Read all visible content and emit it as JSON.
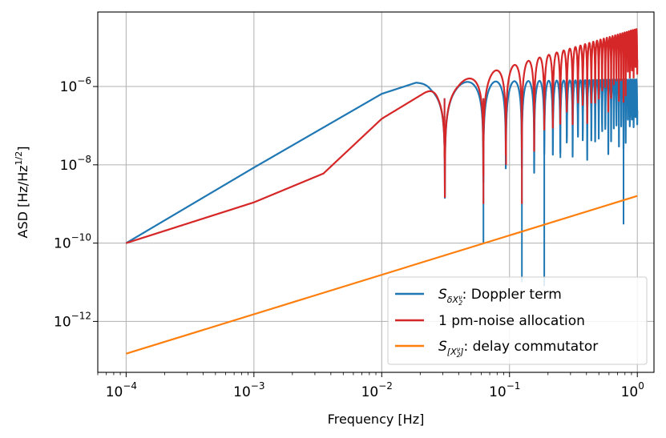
{
  "chart_data": {
    "type": "line",
    "xscale": "log",
    "yscale": "log",
    "xlabel": "Frequency [Hz]",
    "ylabel": "ASD [Hz/Hz",
    "ylabel_sup": "1/2",
    "ylabel_end": "]",
    "xlim": [
      6e-05,
      1.35
    ],
    "ylim": [
      5e-14,
      8e-05
    ],
    "grid": true,
    "legend_position": "lower-right",
    "xticks": [
      {
        "value": 0.0001,
        "base": "10",
        "exp": "−4"
      },
      {
        "value": 0.001,
        "base": "10",
        "exp": "−3"
      },
      {
        "value": 0.01,
        "base": "10",
        "exp": "−2"
      },
      {
        "value": 0.1,
        "base": "10",
        "exp": "−1"
      },
      {
        "value": 1,
        "base": "10",
        "exp": "0"
      }
    ],
    "yticks": [
      {
        "value": 1e-12,
        "base": "10",
        "exp": "−12"
      },
      {
        "value": 1e-10,
        "base": "10",
        "exp": "−10"
      },
      {
        "value": 1e-08,
        "base": "10",
        "exp": "−8"
      },
      {
        "value": 1e-06,
        "base": "10",
        "exp": "−6"
      }
    ],
    "series": [
      {
        "name": "Doppler term",
        "legend_symbol": "S",
        "legend_sub": "δX",
        "legend_subsub": "2",
        "legend_subsup": "ν",
        "legend_suffix": ": Doppler term",
        "color": "#1f77b4",
        "low_freq_points": [
          [
            0.0001,
            1e-10
          ],
          [
            0.001,
            8.5e-09
          ],
          [
            0.01,
            6.5e-07
          ],
          [
            0.0185,
            1.25e-06
          ]
        ],
        "envelope_peak": 1.25e-06,
        "notch_points": [
          [
            0.031,
            1.5e-08
          ],
          [
            0.0625,
            1e-10
          ],
          [
            0.0935,
            1e-08
          ],
          [
            0.125,
            1e-11
          ],
          [
            0.187,
            8e-12
          ],
          [
            0.25,
            1.5e-08
          ],
          [
            0.78,
            3e-10
          ]
        ]
      },
      {
        "name": "1 pm-noise allocation",
        "legend_text": "1 pm-noise allocation",
        "color": "#d62728",
        "low_freq_points": [
          [
            0.0001,
            1e-10
          ],
          [
            0.001,
            1.1e-09
          ],
          [
            0.0035,
            6e-09
          ],
          [
            0.01,
            1.5e-07
          ],
          [
            0.021,
            6.5e-07
          ]
        ],
        "envelope_peak": 1.35e-06,
        "high_freq_peak": 3e-05,
        "notch_points": [
          [
            0.031,
            1.5e-08
          ],
          [
            0.0625,
            1e-09
          ],
          [
            0.094,
            1e-08
          ],
          [
            0.125,
            1e-09
          ]
        ]
      },
      {
        "name": "delay commutator",
        "legend_symbol": "S",
        "legend_sub": "[X",
        "legend_subsub": "2",
        "legend_subsup": "ν",
        "legend_subclose": "]",
        "legend_suffix": ": delay commutator",
        "color": "#ff7f0e",
        "points": [
          [
            0.0001,
            1.5e-13
          ],
          [
            1,
            1.6e-09
          ]
        ]
      }
    ]
  }
}
